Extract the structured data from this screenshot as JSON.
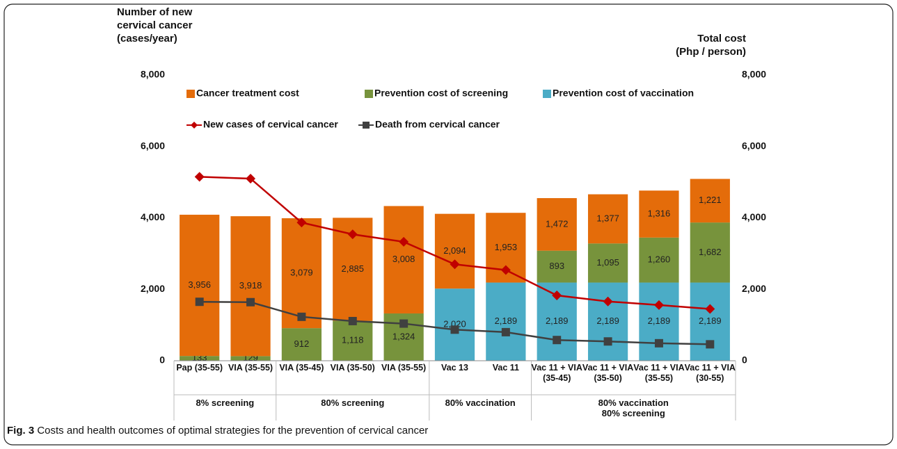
{
  "chart_data": {
    "type": "bar-line",
    "y_title": "Number of new\ncervical cancer\n(cases/year)",
    "y2_title": "Total cost\n(Php / person)",
    "caption_label": "Fig. 3",
    "caption": "Costs and health outcomes of optimal strategies for the prevention of cervical cancer",
    "categories": [
      "Pap (35-55)",
      "VIA (35-55)",
      "VIA (35-45)",
      "VIA (35-50)",
      "VIA (35-55)",
      "Vac 13",
      "Vac 11",
      "Vac 11 + VIA (35-45)",
      "Vac 11 + VIA (35-50)",
      "Vac 11 + VIA (35-55)",
      "Vac 11 + VIA (30-55)"
    ],
    "groups": [
      {
        "label": "8% screening",
        "span": 2
      },
      {
        "label": "80% screening",
        "span": 3
      },
      {
        "label": "80% vaccination",
        "span": 2
      },
      {
        "label": "80% vaccination\n80% screening",
        "span": 4
      }
    ],
    "ylim": [
      0,
      8000
    ],
    "yticks": [
      0,
      {
        "value": 2000,
        "label": "2,000"
      },
      {
        "value": 4000,
        "label": "4,000"
      },
      {
        "value": 6000,
        "label": "6,000"
      },
      {
        "value": 8000,
        "label": "8,000"
      }
    ],
    "y2lim": [
      0,
      8000
    ],
    "y2ticks": [
      0,
      {
        "value": 2000,
        "label": "2,000"
      },
      {
        "value": 4000,
        "label": "4,000"
      },
      {
        "value": 6000,
        "label": "6,000"
      },
      {
        "value": 8000,
        "label": "8,000"
      }
    ],
    "legend": "top-left",
    "series": [
      {
        "name": "Prevention cost of vaccination",
        "type": "bar",
        "axis": "y2",
        "color": "#4bacc6",
        "values": [
          null,
          null,
          null,
          null,
          null,
          2020,
          2189,
          2189,
          2189,
          2189,
          2189
        ],
        "value_labels": [
          null,
          null,
          null,
          null,
          null,
          "2,020",
          "2,189",
          "2,189",
          "2,189",
          "2,189",
          "2,189"
        ]
      },
      {
        "name": "Prevention cost of screening",
        "type": "bar",
        "axis": "y2",
        "color": "#77933c",
        "values": [
          133,
          129,
          912,
          1118,
          1324,
          null,
          null,
          893,
          1095,
          1260,
          1682
        ],
        "value_labels": [
          "133",
          "129",
          "912",
          "1,118",
          "1,324",
          null,
          null,
          "893",
          "1,095",
          "1,260",
          "1,682"
        ]
      },
      {
        "name": "Cancer treatment cost",
        "type": "bar",
        "axis": "y2",
        "color": "#e46c0a",
        "values": [
          3956,
          3918,
          3079,
          2885,
          3008,
          2094,
          1953,
          1472,
          1377,
          1316,
          1221
        ],
        "value_labels": [
          "3,956",
          "3,918",
          "3,079",
          "2,885",
          "3,008",
          "2,094",
          "1,953",
          "1,472",
          "1,377",
          "1,316",
          "1,221"
        ]
      },
      {
        "name": "New cases of cervical cancer",
        "type": "line",
        "marker": "diamond",
        "color": "#c00000",
        "values": [
          5150,
          5100,
          3870,
          3540,
          3330,
          2700,
          2540,
          1830,
          1660,
          1560,
          1450
        ]
      },
      {
        "name": "Death from cervical cancer",
        "type": "line",
        "marker": "square",
        "color": "#404040",
        "values": [
          1650,
          1640,
          1230,
          1110,
          1040,
          870,
          800,
          580,
          540,
          490,
          460
        ]
      }
    ]
  }
}
